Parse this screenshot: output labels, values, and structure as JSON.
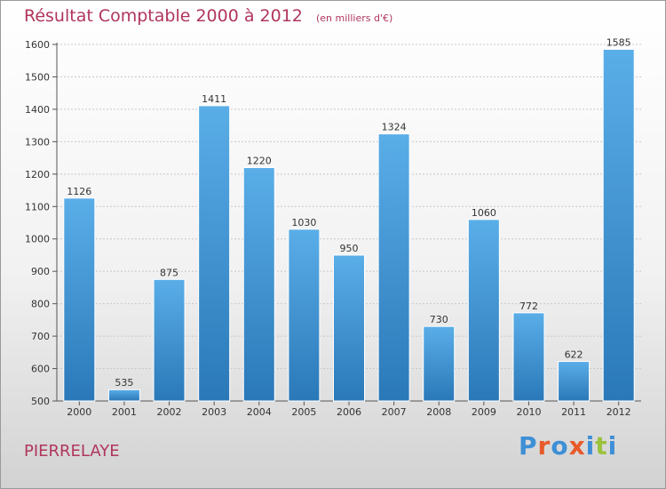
{
  "header": {
    "title": "Résultat Comptable 2000 à 2012",
    "subtitle": "(en milliers d'€)"
  },
  "footer": {
    "location": "PIERRELAYE",
    "logo_text": "Proxiti"
  },
  "colors": {
    "bar_top": "#5aaee8",
    "bar_bottom": "#2a78b8",
    "title": "#b0365c",
    "logo_letters": [
      "#3d8fd6",
      "#e85a2a",
      "#3d8fd6",
      "#e85a2a",
      "#3d8fd6",
      "#9ac23c",
      "#3d8fd6"
    ]
  },
  "chart_data": {
    "type": "bar",
    "categories": [
      "2000",
      "2001",
      "2002",
      "2003",
      "2004",
      "2005",
      "2006",
      "2007",
      "2008",
      "2009",
      "2010",
      "2011",
      "2012"
    ],
    "values": [
      1126,
      535,
      875,
      1411,
      1220,
      1030,
      950,
      1324,
      730,
      1060,
      772,
      622,
      1585
    ],
    "ylim": [
      500,
      1600
    ],
    "yticks": [
      500,
      600,
      700,
      800,
      900,
      1000,
      1100,
      1200,
      1300,
      1400,
      1500,
      1600
    ],
    "grid": true,
    "title": "Résultat Comptable 2000 à 2012",
    "xlabel": "",
    "ylabel": ""
  }
}
